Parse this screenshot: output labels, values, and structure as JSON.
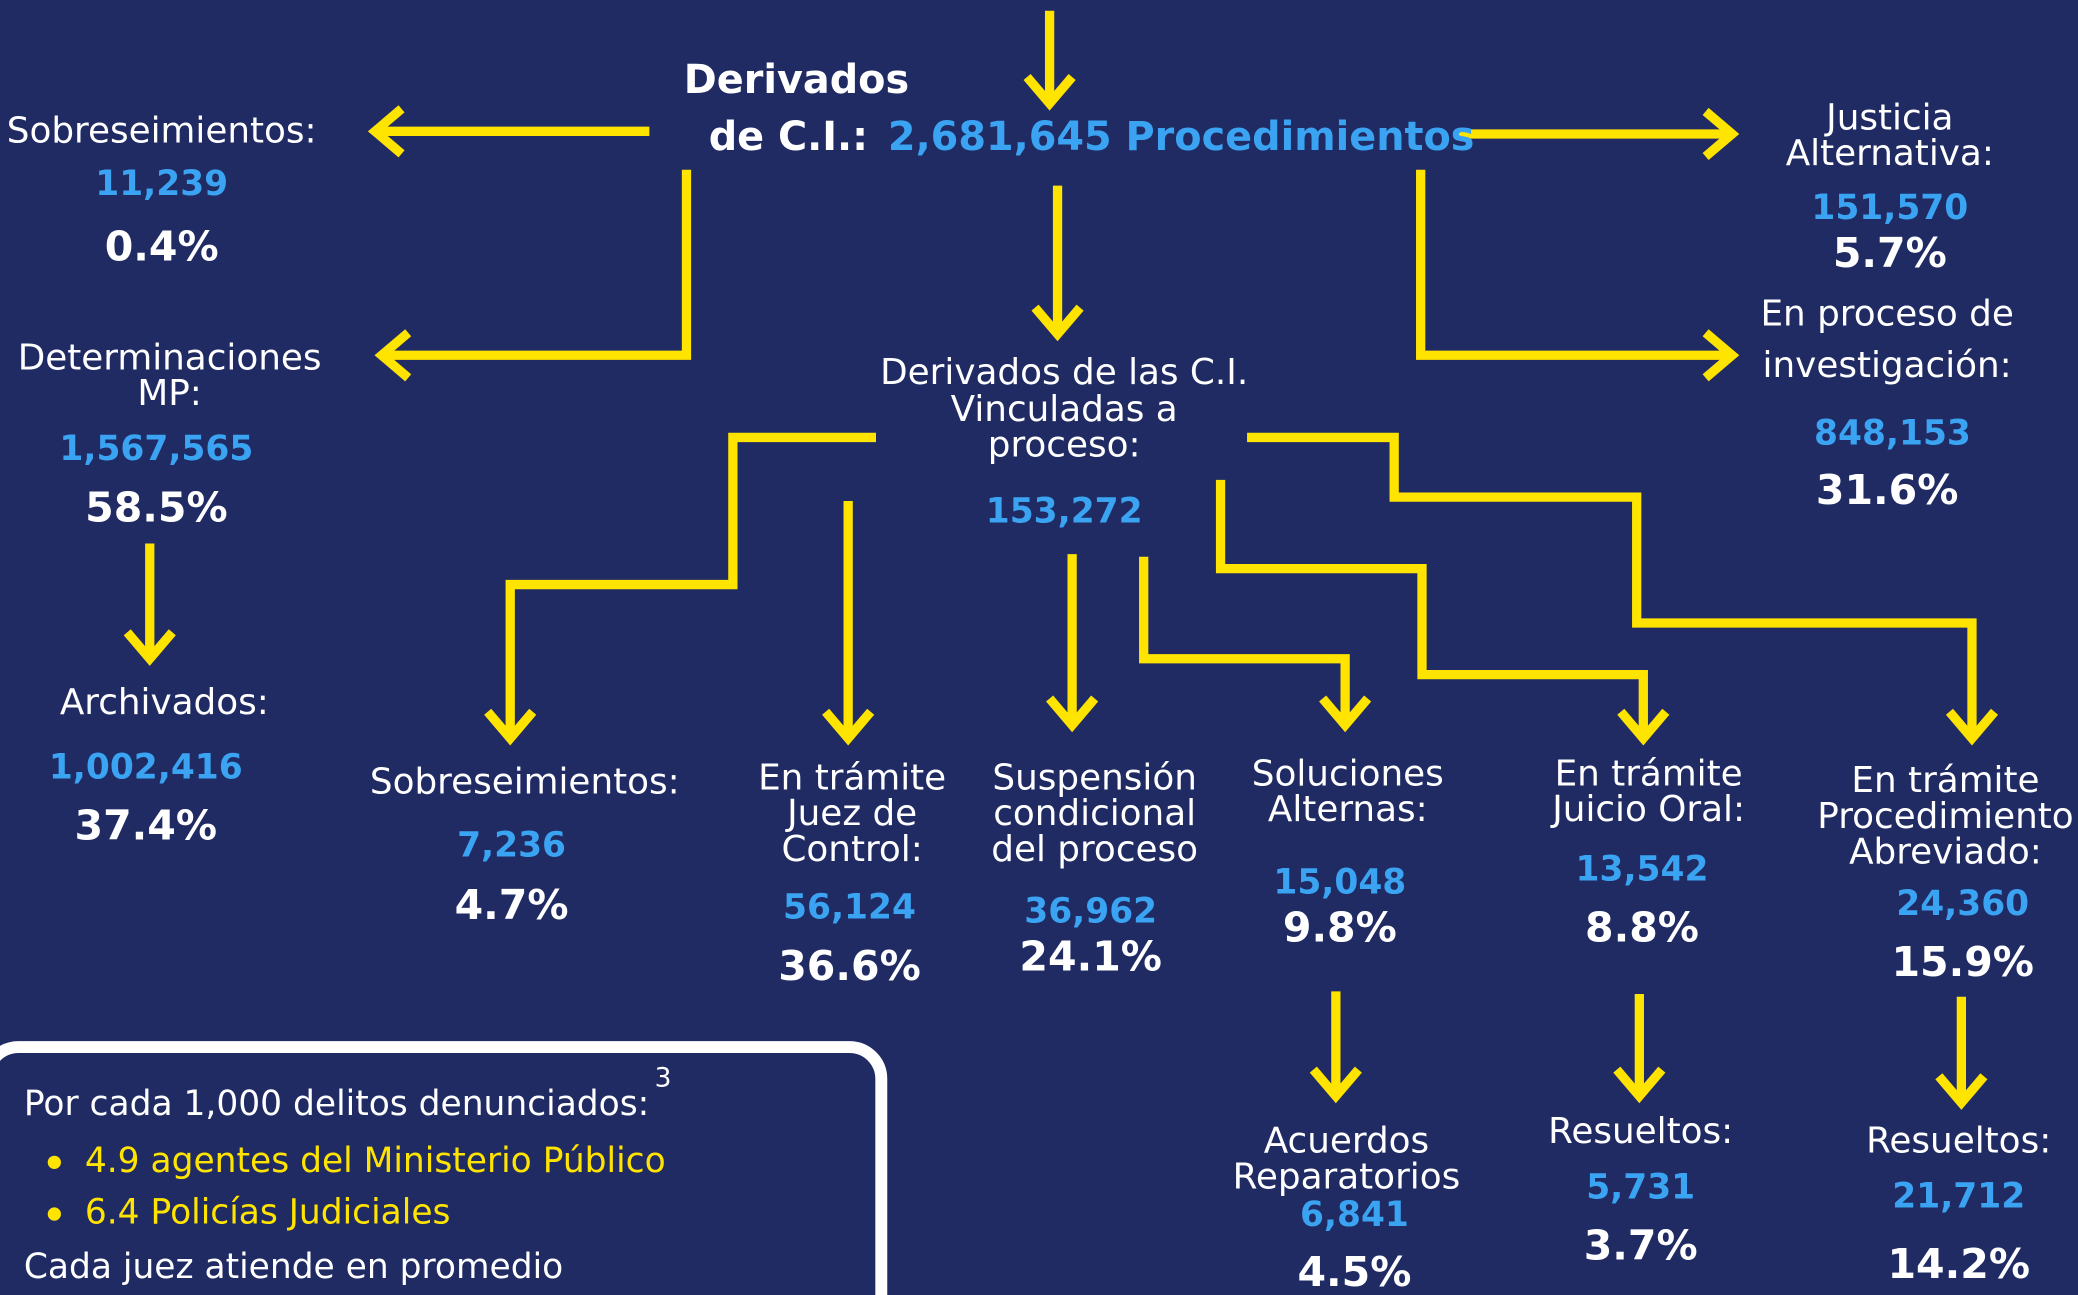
{
  "header": {
    "line1": "Derivados",
    "line2": "de C.I.:",
    "total": "2,681,645 Procedimientos"
  },
  "nodes": [
    {
      "label": [
        "Sobreseimientos:"
      ],
      "count": "11,239",
      "percent": "0.4%"
    },
    {
      "label": [
        "Determinaciones",
        "MP:"
      ],
      "count": "1,567,565",
      "percent": "58.5%"
    },
    {
      "label": [
        "Archivados:"
      ],
      "count": "1,002,416",
      "percent": "37.4%"
    },
    {
      "label": [
        "Justicia",
        "Alternativa:"
      ],
      "count": "151,570",
      "percent": "5.7%"
    },
    {
      "label": [
        "En proceso de",
        "investigación:"
      ],
      "count": "848,153",
      "percent": "31.6%"
    },
    {
      "label": [
        "Derivados de las C.I.",
        "Vinculadas a",
        "proceso:"
      ],
      "count": "153,272"
    },
    {
      "label": [
        "Sobreseimientos:"
      ],
      "count": "7,236",
      "percent": "4.7%"
    },
    {
      "label": [
        "En trámite",
        "Juez de",
        "Control:"
      ],
      "count": "56,124",
      "percent": "36.6%"
    },
    {
      "label": [
        "Suspensión",
        "condicional",
        "del proceso"
      ],
      "count": "36,962",
      "percent": "24.1%"
    },
    {
      "label": [
        "Soluciones",
        "Alternas:"
      ],
      "count": "15,048",
      "percent": "9.8%"
    },
    {
      "label": [
        "En trámite",
        "Juicio Oral:"
      ],
      "count": "13,542",
      "percent": "8.8%"
    },
    {
      "label": [
        "En trámite",
        "Procedimiento",
        "Abreviado:"
      ],
      "count": "24,360",
      "percent": "15.9%"
    },
    {
      "label": [
        "Acuerdos",
        "Reparatorios"
      ],
      "count": "6,841",
      "percent": "4.5%"
    },
    {
      "label": [
        "Resueltos:"
      ],
      "count": "5,731",
      "percent": "3.7%"
    },
    {
      "label": [
        "Resueltos:"
      ],
      "count": "21,712",
      "percent": "14.2%"
    }
  ],
  "note": {
    "title": "Por cada 1,000 delitos denunciados:",
    "superscript": "3",
    "bullets": [
      "4.9 agentes del Ministerio Público",
      "6.4 Policías Judiciales"
    ],
    "footer": "Cada juez atiende en promedio"
  }
}
